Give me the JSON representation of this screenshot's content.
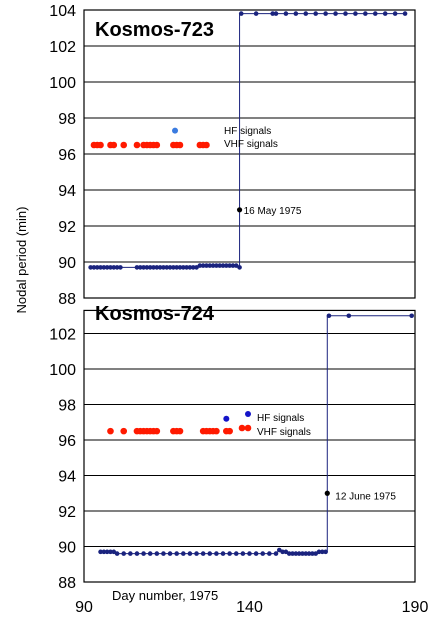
{
  "chart_data": {
    "type": "scatter",
    "xlabel": "Day number, 1975",
    "ylabel": "Nodal period (min)",
    "x_ticks": [
      "90",
      "140",
      "190"
    ],
    "xlim": [
      90,
      190
    ],
    "colors": {
      "line": "#1a237e",
      "hf_top": "#3a7be0",
      "hf_bottom": "#1414c8",
      "vhf": "#ff1a00",
      "annotation": "#000000"
    },
    "panels": [
      {
        "title": "Kosmos-723",
        "ylim": [
          88,
          104
        ],
        "y_ticks": [
          "88",
          "90",
          "92",
          "94",
          "96",
          "98",
          "100",
          "102",
          "104"
        ],
        "series": [
          {
            "name": "",
            "kind": "orbit",
            "x": [
              92,
              93,
              94,
              95,
              96,
              97,
              98,
              99,
              100,
              101,
              106,
              107,
              108,
              109,
              110,
              111,
              112,
              113,
              114,
              115,
              116,
              117,
              118,
              119,
              120,
              121,
              122,
              123,
              124,
              125,
              126,
              127,
              128,
              129,
              130,
              131,
              132,
              133,
              134,
              135,
              136,
              137
            ],
            "y": [
              89.7,
              89.7,
              89.7,
              89.7,
              89.7,
              89.7,
              89.7,
              89.7,
              89.7,
              89.7,
              89.7,
              89.7,
              89.7,
              89.7,
              89.7,
              89.7,
              89.7,
              89.7,
              89.7,
              89.7,
              89.7,
              89.7,
              89.7,
              89.7,
              89.7,
              89.7,
              89.7,
              89.7,
              89.7,
              89.8,
              89.8,
              89.8,
              89.8,
              89.8,
              89.8,
              89.8,
              89.8,
              89.8,
              89.8,
              89.8,
              89.8,
              89.7
            ]
          },
          {
            "name": "",
            "kind": "orbit-after",
            "x": [
              137.5,
              142,
              147,
              148,
              151,
              154,
              157,
              160,
              163,
              166,
              169,
              172,
              175,
              178,
              181,
              184,
              187
            ],
            "y": [
              103.8,
              103.8,
              103.8,
              103.8,
              103.8,
              103.8,
              103.8,
              103.8,
              103.8,
              103.8,
              103.8,
              103.8,
              103.8,
              103.8,
              103.8,
              103.8,
              103.8
            ]
          },
          {
            "name": "HF signals",
            "kind": "hf",
            "x": [
              117.5
            ],
            "y": [
              97.3
            ]
          },
          {
            "name": "VHF signals",
            "kind": "vhf",
            "x": [
              93,
              94,
              95,
              98,
              99,
              102,
              106,
              108,
              109,
              110,
              111,
              112,
              117,
              118,
              119,
              125,
              126,
              127
            ],
            "y": [
              96.5,
              96.5,
              96.5,
              96.5,
              96.5,
              96.5,
              96.5,
              96.5,
              96.5,
              96.5,
              96.5,
              96.5,
              96.5,
              96.5,
              96.5,
              96.5,
              96.5,
              96.5
            ]
          }
        ],
        "transition": {
          "x": 137,
          "y_from": 89.7,
          "y_to": 103.8,
          "mark_y": 92.9
        },
        "annotation": {
          "text": "16 May 1975",
          "x": 137,
          "y": 92.9
        },
        "legend": {
          "hf": "HF signals",
          "vhf": "VHF signals"
        }
      },
      {
        "title": "Kosmos-724",
        "ylim": [
          88,
          104
        ],
        "y_ticks": [
          "88",
          "90",
          "92",
          "94",
          "96",
          "98",
          "100",
          "102"
        ],
        "series": [
          {
            "name": "",
            "kind": "orbit",
            "x": [
              95,
              96,
              97,
              98,
              99,
              100,
              102,
              104,
              106,
              108,
              110,
              112,
              114,
              116,
              118,
              120,
              122,
              124,
              126,
              128,
              130,
              132,
              134,
              136,
              138,
              140,
              142,
              144,
              146,
              148,
              149,
              150,
              151,
              152,
              153,
              154,
              155,
              156,
              157,
              158,
              159,
              160,
              161,
              162,
              163
            ],
            "y": [
              89.7,
              89.7,
              89.7,
              89.7,
              89.7,
              89.6,
              89.6,
              89.6,
              89.6,
              89.6,
              89.6,
              89.6,
              89.6,
              89.6,
              89.6,
              89.6,
              89.6,
              89.6,
              89.6,
              89.6,
              89.6,
              89.6,
              89.6,
              89.6,
              89.6,
              89.6,
              89.6,
              89.6,
              89.6,
              89.6,
              89.8,
              89.7,
              89.7,
              89.6,
              89.6,
              89.6,
              89.6,
              89.6,
              89.6,
              89.6,
              89.6,
              89.6,
              89.7,
              89.7,
              89.7
            ]
          },
          {
            "name": "",
            "kind": "orbit-after",
            "x": [
              164,
              170,
              189
            ],
            "y": [
              103,
              103,
              103
            ]
          },
          {
            "name": "HF signals",
            "kind": "hf",
            "x": [
              133
            ],
            "y": [
              97.2
            ]
          },
          {
            "name": "VHF signals",
            "kind": "vhf",
            "x": [
              98,
              102,
              106,
              107,
              108,
              109,
              110,
              111,
              112,
              117,
              118,
              119,
              126,
              127,
              128,
              129,
              130,
              133,
              134
            ],
            "y": [
              96.5,
              96.5,
              96.5,
              96.5,
              96.5,
              96.5,
              96.5,
              96.5,
              96.5,
              96.5,
              96.5,
              96.5,
              96.5,
              96.5,
              96.5,
              96.5,
              96.5,
              96.5,
              96.5
            ]
          }
        ],
        "transition": {
          "x": 163.5,
          "y_from": 89.7,
          "y_to": 103,
          "mark_y": 93
        },
        "annotation": {
          "text": "12 June 1975",
          "x": 163.5,
          "y": 93
        },
        "legend": {
          "hf": "HF signals",
          "vhf": "VHF signals"
        }
      }
    ]
  }
}
